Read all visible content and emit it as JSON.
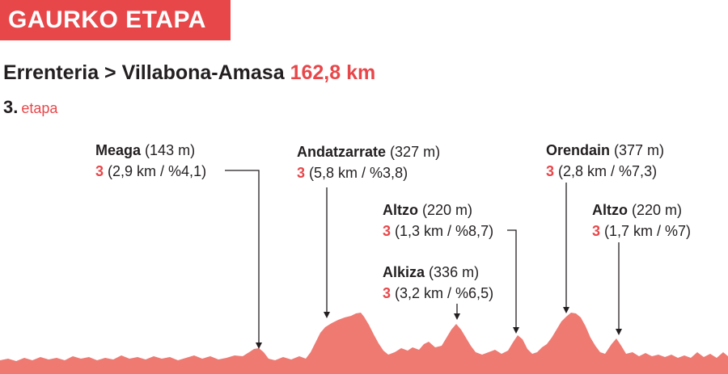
{
  "header": {
    "badge": "GAURKO ETAPA"
  },
  "route": {
    "text": "Errenteria > Villabona-Amasa",
    "distance": "162,8 km"
  },
  "stage": {
    "number": "3.",
    "label": "etapa"
  },
  "climbs": [
    {
      "name": "Meaga",
      "altitude": "(143 m)",
      "category": "3",
      "details": "(2,9 km / %4,1)"
    },
    {
      "name": "Andatzarrate",
      "altitude": "(327 m)",
      "category": "3",
      "details": "(5,8 km / %3,8)"
    },
    {
      "name": "Altzo",
      "altitude": "(220 m)",
      "category": "3",
      "details": "(1,3 km / %8,7)"
    },
    {
      "name": "Alkiza",
      "altitude": "(336 m)",
      "category": "3",
      "details": "(3,2 km / %6,5)"
    },
    {
      "name": "Orendain",
      "altitude": "(377 m)",
      "category": "3",
      "details": "(2,8 km / %7,3)"
    },
    {
      "name": "Altzo",
      "altitude": "(220 m)",
      "category": "3",
      "details": "(1,7 km / %7)"
    }
  ],
  "colors": {
    "accent": "#e8474a",
    "profile_fill": "#ef7a72",
    "text": "#231f20"
  }
}
